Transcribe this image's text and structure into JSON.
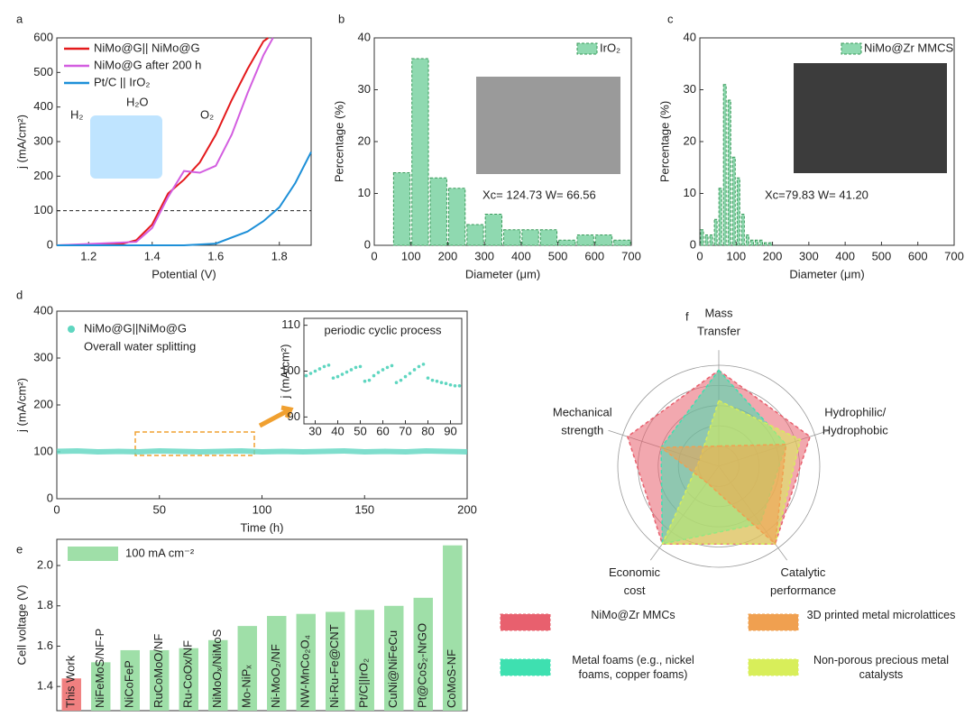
{
  "chart_data": [
    {
      "type": "line",
      "panel": "a",
      "xlabel": "Potential (V)",
      "ylabel": "j (mA/cm²)",
      "xlim": [
        1.1,
        1.9
      ],
      "ylim": [
        0,
        600
      ],
      "xticks": [
        1.2,
        1.4,
        1.6,
        1.8
      ],
      "yticks": [
        0,
        100,
        200,
        300,
        400,
        500,
        600
      ],
      "reference_line": 100,
      "annotations": [
        "H₂",
        "H₂O",
        "O₂"
      ],
      "series": [
        {
          "name": "NiMo@G|| NiMo@G",
          "color": "#e41a1c",
          "x": [
            1.1,
            1.3,
            1.35,
            1.4,
            1.45,
            1.5,
            1.55,
            1.6,
            1.65,
            1.7,
            1.75,
            1.765
          ],
          "values": [
            0,
            3,
            15,
            60,
            150,
            190,
            240,
            320,
            420,
            510,
            590,
            600
          ]
        },
        {
          "name": "NiMo@G after 200 h",
          "color": "#d35ee0",
          "x": [
            1.1,
            1.35,
            1.4,
            1.45,
            1.5,
            1.55,
            1.6,
            1.65,
            1.7,
            1.75,
            1.78
          ],
          "values": [
            0,
            10,
            50,
            140,
            215,
            210,
            230,
            320,
            440,
            550,
            600
          ]
        },
        {
          "name": "Pt/C || IrO₂",
          "color": "#1e90d8",
          "x": [
            1.1,
            1.5,
            1.6,
            1.7,
            1.75,
            1.8,
            1.85,
            1.9
          ],
          "values": [
            0,
            0,
            5,
            40,
            70,
            110,
            180,
            270
          ]
        }
      ]
    },
    {
      "type": "histogram",
      "panel": "b",
      "xlabel": "Diameter (μm)",
      "ylabel": "Percentage (%)",
      "xlim": [
        0,
        700
      ],
      "ylim": [
        0,
        40
      ],
      "xticks": [
        0,
        100,
        200,
        300,
        400,
        500,
        600,
        700
      ],
      "yticks": [
        0,
        10,
        20,
        30,
        40
      ],
      "legend": "IrO₂",
      "annotation": "Xc= 124.73 W= 66.56",
      "color": "#8fd9b0",
      "bins": [
        50,
        100,
        150,
        200,
        250,
        300,
        350,
        400,
        450,
        500,
        550,
        600,
        650,
        700
      ],
      "values": [
        14,
        36,
        13,
        11,
        4,
        6,
        3,
        3,
        3,
        1,
        2,
        2,
        1
      ]
    },
    {
      "type": "histogram",
      "panel": "c",
      "xlabel": "Diameter (μm)",
      "ylabel": "Percentage (%)",
      "xlim": [
        0,
        700
      ],
      "ylim": [
        0,
        40
      ],
      "xticks": [
        0,
        100,
        200,
        300,
        400,
        500,
        600,
        700
      ],
      "yticks": [
        0,
        10,
        20,
        30,
        40
      ],
      "legend": "NiMo@Zr MMCS",
      "annotation": "Xc=79.83 W= 41.20",
      "color": "#8fd9b0",
      "bins": [
        0,
        12.5,
        25,
        37.5,
        50,
        62.5,
        75,
        87.5,
        100,
        112.5,
        125,
        137.5,
        150,
        162.5,
        175,
        187.5,
        200
      ],
      "values": [
        3,
        2,
        2,
        5,
        11,
        31,
        28,
        17,
        13,
        6,
        2,
        1,
        1,
        1,
        0.5,
        0.5
      ]
    },
    {
      "type": "line",
      "panel": "d",
      "xlabel": "Time (h)",
      "ylabel": "j (mA/cm²)",
      "xlim": [
        0,
        200
      ],
      "ylim": [
        0,
        400
      ],
      "xticks": [
        0,
        50,
        100,
        150,
        200
      ],
      "yticks": [
        0,
        100,
        200,
        300,
        400
      ],
      "annotation": "Overall water splitting",
      "series": [
        {
          "name": "NiMo@G||NiMo@G",
          "color": "#5fd6c0",
          "x": [
            0,
            10,
            20,
            30,
            40,
            50,
            60,
            70,
            80,
            90,
            100,
            110,
            120,
            130,
            140,
            150,
            160,
            170,
            180,
            190,
            200
          ],
          "values": [
            101,
            102,
            100,
            101,
            100,
            102,
            101,
            100,
            101,
            102,
            100,
            101,
            100,
            101,
            102,
            100,
            101,
            100,
            102,
            101,
            100
          ]
        }
      ]
    },
    {
      "type": "scatter",
      "title": "periodic cyclic process",
      "ylabel": "j (mA/cm²)",
      "xlim": [
        25,
        95
      ],
      "ylim": [
        88.5,
        111.5
      ],
      "xticks": [
        30,
        40,
        50,
        60,
        70,
        80,
        90
      ],
      "yticks": [
        90,
        100,
        110
      ],
      "series": [
        {
          "name": "",
          "color": "#5fd6c0",
          "x": [
            26,
            28,
            30,
            32,
            34,
            36,
            38,
            40,
            42,
            44,
            46,
            48,
            50,
            52,
            54,
            56,
            58,
            60,
            62,
            64,
            66,
            68,
            70,
            72,
            74,
            76,
            78,
            80,
            82,
            84,
            86,
            88,
            90,
            92,
            94
          ],
          "values": [
            99,
            99.5,
            100,
            100.5,
            101,
            101.3,
            98.5,
            98.8,
            99.3,
            99.8,
            100.3,
            100.8,
            101,
            97.8,
            98,
            99,
            99.7,
            100.3,
            100.8,
            101.2,
            97.5,
            98,
            98.8,
            99.5,
            100.3,
            101,
            101.5,
            98.5,
            98,
            97.8,
            97.5,
            97.3,
            97,
            96.8,
            96.8
          ]
        }
      ]
    },
    {
      "type": "bar",
      "panel": "e",
      "ylabel": "Cell voltage (V)",
      "legend": "100 mA cm⁻²",
      "ylim": [
        1.28,
        2.13
      ],
      "yticks": [
        1.4,
        1.6,
        1.8,
        {
          "value": 2,
          "label": "2.0"
        }
      ],
      "categories": [
        "This Work",
        "NiFeMoS/NF-P",
        "NiCoFeP",
        "RuCoMoO/NF",
        "Ru-CoOx/NF",
        "NiMoOₓ/NiMoS",
        "Mo-NiPₓ",
        "Ni-MoO₂/NF",
        "NW-MnCo₂O₄",
        "Ni-Ru-Fe@CNT",
        "Pt/C||IrO₂",
        "CuNi@NiFeCu",
        "Pt@CoS₂-NrGO",
        "CoMoS-NF"
      ],
      "values": [
        1.44,
        1.52,
        1.58,
        1.58,
        1.59,
        1.63,
        1.7,
        1.75,
        1.76,
        1.77,
        1.78,
        1.8,
        1.84,
        2.1
      ],
      "colors": [
        "#f08080",
        "#9fdfa8",
        "#9fdfa8",
        "#9fdfa8",
        "#9fdfa8",
        "#9fdfa8",
        "#9fdfa8",
        "#9fdfa8",
        "#9fdfa8",
        "#9fdfa8",
        "#9fdfa8",
        "#9fdfa8",
        "#9fdfa8",
        "#9fdfa8"
      ]
    },
    {
      "type": "radar",
      "panel": "f",
      "rlim": [
        0,
        1
      ],
      "rticks": [
        0.2,
        0.4,
        0.6,
        0.8,
        1
      ],
      "axes": [
        [
          "Mass",
          "Transfer"
        ],
        [
          "Hydrophilic/",
          "Hydrophobic"
        ],
        [
          "Catalytic",
          "performance"
        ],
        [
          "Economic",
          "cost"
        ],
        [
          "Mechanical",
          "strength"
        ]
      ],
      "series": [
        {
          "name": "NiMo@Zr MMCs",
          "color": "#e8606e",
          "values": [
            0.95,
            0.95,
            0.95,
            0.95,
            0.95
          ]
        },
        {
          "name": "Metal foams (e.g., nickel foams, copper foams)",
          "color": "#3ee0b0",
          "values": [
            0.95,
            0.7,
            0.7,
            0.95,
            0.6
          ]
        },
        {
          "name": "Non-porous precious metal catalysts",
          "color": "#d8ee5a",
          "values": [
            0.65,
            0.85,
            0.95,
            0.95,
            0.2
          ]
        },
        {
          "name": "3D printed metal microlattices",
          "color": "#f0a050",
          "values": [
            0.2,
            0.7,
            0.95,
            0.2,
            0.6
          ]
        }
      ]
    }
  ]
}
